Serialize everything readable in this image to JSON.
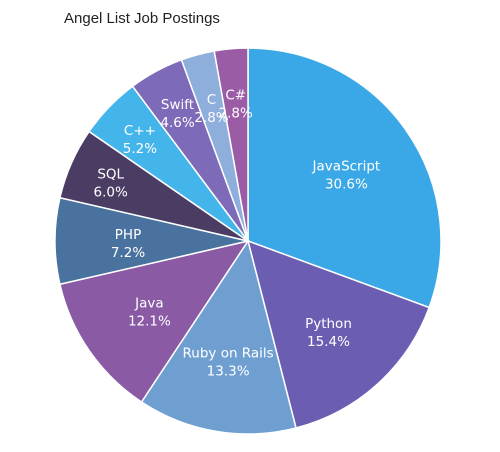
{
  "chart_data": {
    "type": "pie",
    "title": "Angel List Job Postings",
    "start_angle_deg": 0,
    "direction": "clockwise",
    "slices": [
      {
        "label": "JavaScript",
        "value": 30.6,
        "value_text": "30.6%",
        "color": "#3aa8e6"
      },
      {
        "label": "Python",
        "value": 15.4,
        "value_text": "15.4%",
        "color": "#6b5eb2"
      },
      {
        "label": "Ruby on Rails",
        "value": 13.3,
        "value_text": "13.3%",
        "color": "#6f9fd1"
      },
      {
        "label": "Java",
        "value": 12.1,
        "value_text": "12.1%",
        "color": "#8a5aa5"
      },
      {
        "label": "PHP",
        "value": 7.2,
        "value_text": "7.2%",
        "color": "#49739e"
      },
      {
        "label": "SQL",
        "value": 6.0,
        "value_text": "6.0%",
        "color": "#4b3c64"
      },
      {
        "label": "C++",
        "value": 5.2,
        "value_text": "5.2%",
        "color": "#43b5ea"
      },
      {
        "label": "Swift",
        "value": 4.6,
        "value_text": "4.6%",
        "color": "#7d6ab8"
      },
      {
        "label": "C",
        "value": 2.8,
        "value_text": "2.8%",
        "color": "#8eaedb"
      },
      {
        "label": "C#",
        "value": 2.8,
        "value_text": "2.8%",
        "color": "#9b5ca6"
      }
    ]
  }
}
